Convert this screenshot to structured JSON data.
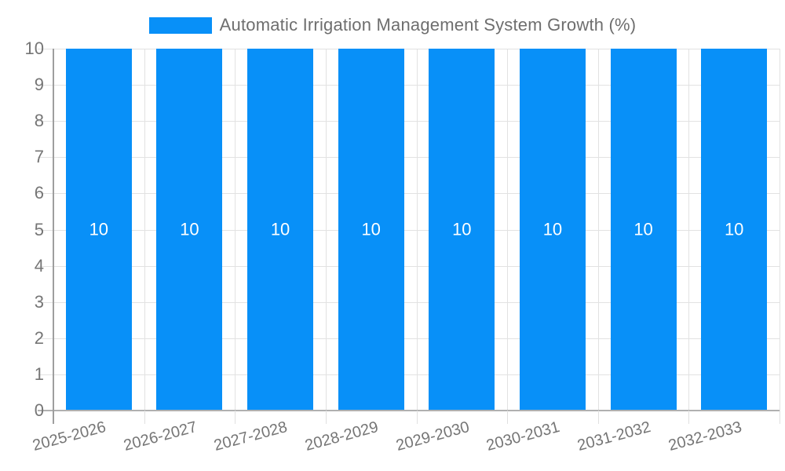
{
  "chart_data": {
    "type": "bar",
    "title": "Automatic Irrigation Management System Growth (%)",
    "categories": [
      "2025-2026",
      "2026-2027",
      "2027-2028",
      "2028-2029",
      "2029-2030",
      "2030-2031",
      "2031-2032",
      "2032-2033"
    ],
    "series": [
      {
        "name": "Automatic Irrigation Management System Growth (%)",
        "values": [
          10,
          10,
          10,
          10,
          10,
          10,
          10,
          10
        ]
      }
    ],
    "value_labels": [
      "10",
      "10",
      "10",
      "10",
      "10",
      "10",
      "10",
      "10"
    ],
    "xlabel": "",
    "ylabel": "",
    "ylim": [
      0,
      10
    ],
    "yticks": [
      0,
      1,
      2,
      3,
      4,
      5,
      6,
      7,
      8,
      9,
      10
    ],
    "grid": true,
    "legend_position": "top-center",
    "colors": {
      "bar": "#0890f8",
      "grid": "#e2e2e2",
      "axis_line": "#9e9e9e",
      "baseline": "#b0b0b0",
      "tick": "#e0e0e0",
      "axis_text": "#757575",
      "legend_text": "#6e6e6e",
      "value_label_text": "#ffffff"
    }
  }
}
